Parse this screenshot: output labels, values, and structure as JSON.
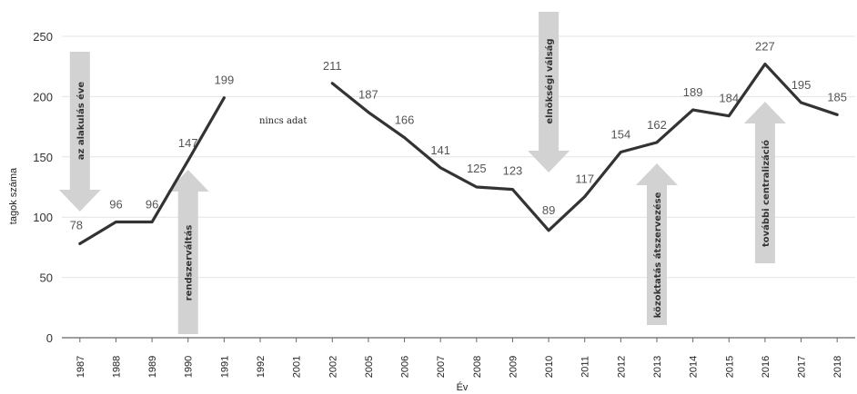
{
  "chart_data": {
    "type": "line",
    "xlabel": "Év",
    "ylabel": "tagok száma",
    "ylim": [
      0,
      250
    ],
    "yticks": [
      0,
      50,
      100,
      150,
      200,
      250
    ],
    "grid": true,
    "categories": [
      "1987",
      "1988",
      "1989",
      "1990",
      "1991",
      "1992",
      "2001",
      "2002",
      "2005",
      "2006",
      "2007",
      "2008",
      "2009",
      "2010",
      "2011",
      "2012",
      "2013",
      "2014",
      "2015",
      "2016",
      "2017",
      "2018"
    ],
    "values": [
      78,
      96,
      96,
      147,
      199,
      null,
      null,
      211,
      187,
      166,
      141,
      125,
      123,
      89,
      117,
      154,
      162,
      189,
      184,
      227,
      195,
      185
    ],
    "line_color": "#333333",
    "no_data_note": "nincs adat",
    "annotations": [
      {
        "label": "az alakulás éve",
        "category": "1987",
        "direction": "down"
      },
      {
        "label": "rendszerváltás",
        "category": "1990",
        "direction": "up"
      },
      {
        "label": "elnökségi válság",
        "category": "2010",
        "direction": "down"
      },
      {
        "label": "közoktatás átszervezése",
        "category": "2013",
        "direction": "up"
      },
      {
        "label": "további centralizáció",
        "category": "2016",
        "direction": "up"
      }
    ]
  }
}
